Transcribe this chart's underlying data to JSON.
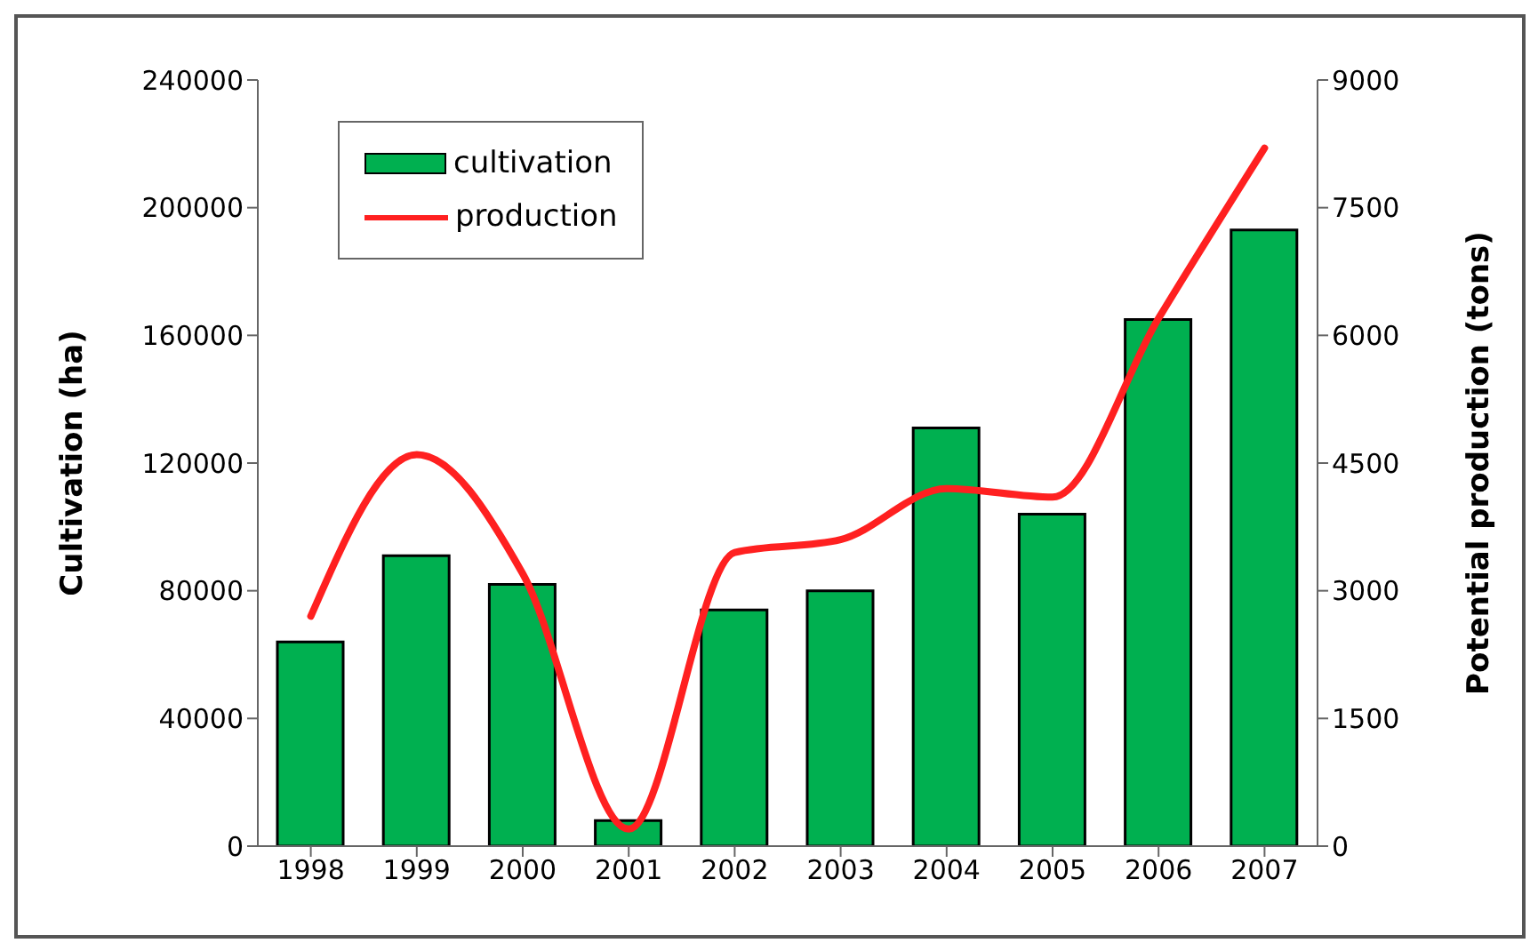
{
  "chart_data": {
    "type": "bar",
    "categories": [
      "1998",
      "1999",
      "2000",
      "2001",
      "2002",
      "2003",
      "2004",
      "2005",
      "2006",
      "2007"
    ],
    "series": [
      {
        "name": "cultivation",
        "color": "#00b050",
        "values": [
          64000,
          91000,
          82000,
          8000,
          74000,
          80000,
          131000,
          104000,
          165000,
          193000
        ]
      },
      {
        "name": "production",
        "type": "line",
        "axis": "y2",
        "color": "#ff2020",
        "values": [
          2700,
          4600,
          3200,
          200,
          3450,
          3600,
          4200,
          4100,
          6200,
          8200
        ]
      }
    ],
    "ylabel": "Cultivation (ha)",
    "y2label": "Potential production (tons)",
    "ylim": [
      0,
      240000
    ],
    "yticks": [
      0,
      40000,
      80000,
      120000,
      160000,
      200000,
      240000
    ],
    "y2lim": [
      0,
      9000
    ],
    "y2ticks": [
      0,
      1500,
      3000,
      4500,
      6000,
      7500,
      9000
    ],
    "grid": false,
    "legend": "top left",
    "marker": "none",
    "line_style": "solid"
  }
}
